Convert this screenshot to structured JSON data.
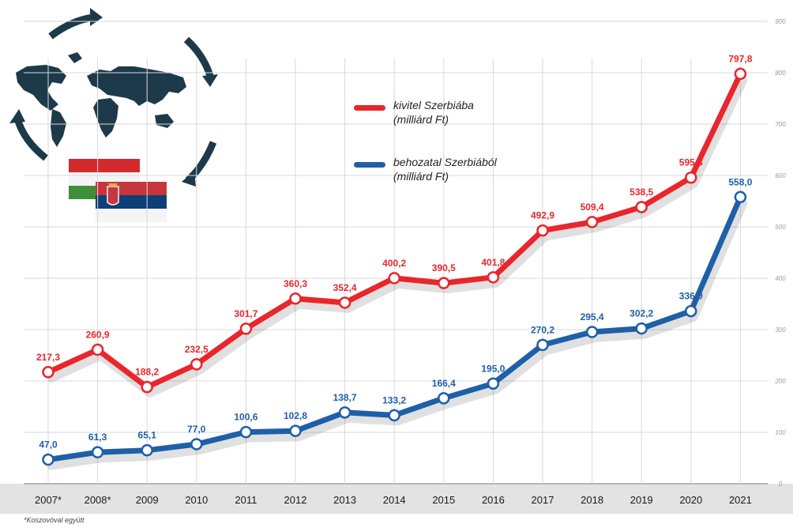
{
  "chart_data": {
    "type": "line",
    "categories": [
      "2007*",
      "2008*",
      "2009",
      "2010",
      "2011",
      "2012",
      "2013",
      "2014",
      "2015",
      "2016",
      "2017",
      "2018",
      "2019",
      "2020",
      "2021"
    ],
    "series": [
      {
        "name": "kivitel Szerbiába",
        "unit": "(milliárd Ft)",
        "color": "#e8262c",
        "values": [
          217.3,
          260.9,
          188.2,
          232.5,
          301.7,
          360.3,
          352.4,
          400.2,
          390.5,
          401.8,
          492.9,
          509.4,
          538.5,
          595.8,
          797.8
        ],
        "labels": [
          "217,3",
          "260,9",
          "188,2",
          "232,5",
          "301,7",
          "360,3",
          "352,4",
          "400,2",
          "390,5",
          "401,8",
          "492,9",
          "509,4",
          "538,5",
          "595,8",
          "797,8"
        ]
      },
      {
        "name": "behozatal Szerbiából",
        "unit": "(milliárd Ft)",
        "color": "#1f5fa8",
        "values": [
          47.0,
          61.3,
          65.1,
          77.0,
          100.6,
          102.8,
          138.7,
          133.2,
          166.4,
          195.0,
          270.2,
          295.4,
          302.2,
          336.0,
          558.0
        ],
        "labels": [
          "47,0",
          "61,3",
          "65,1",
          "77,0",
          "100,6",
          "102,8",
          "138,7",
          "133,2",
          "166,4",
          "195,0",
          "270,2",
          "295,4",
          "302,2",
          "336,0",
          "558,0"
        ]
      }
    ],
    "yticks": [
      "0",
      "100",
      "200",
      "300",
      "400",
      "500",
      "600",
      "700",
      "800",
      "900"
    ],
    "ylim": [
      0,
      900
    ],
    "grid": true,
    "legend_position": "top-center",
    "footnote": "*Koszovóval együtt"
  },
  "colors": {
    "axis_band": "#e3e3e3",
    "grid": "#d9d9d9",
    "map": "#1d3a4a",
    "hu_red": "#d42a2e",
    "hu_green": "#3f8f3a",
    "rs_red": "#c6363c",
    "rs_blue": "#0c4076"
  },
  "icons": [
    "world-map-icon",
    "cycle-arrows-icon",
    "hungary-flag-icon",
    "serbia-flag-icon"
  ]
}
